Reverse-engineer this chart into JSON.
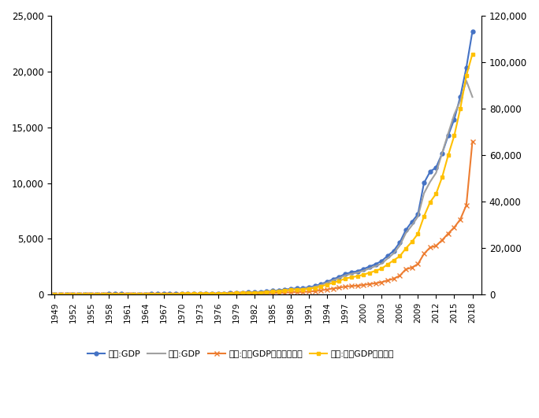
{
  "years": [
    1949,
    1950,
    1951,
    1952,
    1953,
    1954,
    1955,
    1956,
    1957,
    1958,
    1959,
    1960,
    1961,
    1962,
    1963,
    1964,
    1965,
    1966,
    1967,
    1968,
    1969,
    1970,
    1971,
    1972,
    1973,
    1974,
    1975,
    1976,
    1977,
    1978,
    1979,
    1980,
    1981,
    1982,
    1983,
    1984,
    1985,
    1986,
    1987,
    1988,
    1989,
    1990,
    1991,
    1992,
    1993,
    1994,
    1995,
    1996,
    1997,
    1998,
    1999,
    2000,
    2001,
    2002,
    2003,
    2004,
    2005,
    2006,
    2007,
    2008,
    2009,
    2010,
    2011,
    2012,
    2013,
    2014,
    2015,
    2016,
    2017,
    2018
  ],
  "cq_gdp": [
    20,
    22,
    25,
    30,
    34,
    36,
    38,
    42,
    48,
    55,
    62,
    58,
    50,
    45,
    46,
    50,
    58,
    65,
    60,
    55,
    62,
    75,
    82,
    88,
    95,
    98,
    105,
    108,
    120,
    145,
    165,
    185,
    200,
    220,
    250,
    300,
    350,
    390,
    450,
    530,
    560,
    590,
    660,
    780,
    950,
    1150,
    1380,
    1600,
    1857,
    2000,
    2100,
    2300,
    2518,
    2731,
    3009,
    3480,
    3930,
    4676,
    5793,
    6530,
    7200,
    10011,
    11010,
    11409,
    12656,
    14265,
    15717,
    17740,
    20363,
    23606
  ],
  "cd_gdp": [
    16,
    18,
    21,
    25,
    29,
    31,
    33,
    37,
    43,
    50,
    55,
    51,
    44,
    40,
    41,
    45,
    52,
    58,
    54,
    49,
    56,
    68,
    74,
    80,
    86,
    89,
    96,
    98,
    110,
    132,
    152,
    168,
    182,
    200,
    228,
    274,
    320,
    360,
    415,
    488,
    515,
    545,
    615,
    724,
    882,
    1068,
    1278,
    1480,
    1720,
    1862,
    1967,
    2145,
    2340,
    2555,
    2785,
    3245,
    3700,
    4400,
    5506,
    6198,
    7005,
    9080,
    10100,
    10920,
    12700,
    14448,
    16154,
    17380,
    19173,
    17717
  ],
  "cq_per_gdp": [
    50,
    55,
    62,
    70,
    80,
    84,
    88,
    96,
    108,
    122,
    136,
    126,
    107,
    95,
    97,
    105,
    122,
    136,
    126,
    115,
    130,
    157,
    171,
    183,
    197,
    203,
    217,
    222,
    247,
    297,
    337,
    376,
    406,
    444,
    503,
    601,
    699,
    774,
    892,
    1045,
    1099,
    1155,
    1284,
    1510,
    1830,
    2200,
    2608,
    3001,
    3453,
    3685,
    3850,
    4177,
    4535,
    4882,
    5332,
    6127,
    6874,
    8117,
    10906,
    11658,
    13143,
    17558,
    20249,
    21056,
    23459,
    26296,
    28936,
    32372,
    38523,
    65933
  ],
  "cd_per_gdp": [
    80,
    88,
    98,
    110,
    124,
    132,
    140,
    156,
    180,
    208,
    232,
    216,
    184,
    168,
    172,
    188,
    216,
    240,
    224,
    204,
    232,
    280,
    304,
    328,
    352,
    364,
    392,
    400,
    448,
    540,
    620,
    688,
    740,
    820,
    928,
    1112,
    1300,
    1460,
    1680,
    1980,
    2080,
    2200,
    2480,
    2920,
    3560,
    4320,
    5140,
    5960,
    6908,
    7480,
    7920,
    8600,
    9400,
    10240,
    11200,
    13000,
    14783,
    16516,
    19859,
    22700,
    26200,
    33658,
    39722,
    43400,
    50552,
    59959,
    68398,
    80024,
    94258,
    103559
  ],
  "cq_gdp_color": "#4472C4",
  "cd_gdp_color": "#A0A0A0",
  "cq_per_color": "#ED7D31",
  "cd_per_color": "#FFC000",
  "left_ylim": [
    0,
    25000
  ],
  "right_ylim": [
    0,
    120000
  ],
  "left_yticks": [
    0,
    5000,
    10000,
    15000,
    20000,
    25000
  ],
  "right_yticks": [
    0,
    20000,
    40000,
    60000,
    80000,
    100000,
    120000
  ],
  "legend_labels": [
    "重庆:GDP",
    "成都:GDP",
    "重庆:人均GDP（元，右轴）",
    "成都:人均GDP（右轴）"
  ],
  "fig_width": 6.84,
  "fig_height": 5.31,
  "dpi": 100
}
